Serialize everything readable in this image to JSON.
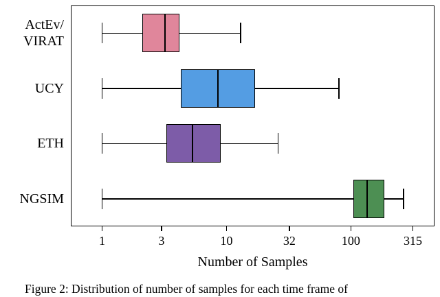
{
  "caption": "Figure 2: Distribution of number of samples for each time frame of",
  "chart_data": {
    "type": "boxplot",
    "orientation": "horizontal",
    "title": "",
    "xlabel": "Number of Samples",
    "x_scale": "log",
    "x_ticks": [
      1,
      3,
      10,
      32,
      100,
      315
    ],
    "x_tick_labels": [
      "1",
      "3",
      "10",
      "32",
      "100",
      "315"
    ],
    "xlim": [
      0.56,
      470
    ],
    "grid": false,
    "legend": "none",
    "categories": [
      "ActEv/VIRAT",
      "UCY",
      "ETH",
      "NGSIM"
    ],
    "category_label_lines": [
      [
        "ActEv/",
        "VIRAT"
      ],
      [
        "UCY"
      ],
      [
        "ETH"
      ],
      [
        "NGSIM"
      ]
    ],
    "series": [
      {
        "name": "ActEv/VIRAT",
        "min": 1,
        "q1": 2.1,
        "median": 3.2,
        "q3": 4.2,
        "max": 13,
        "color": "#e0869b"
      },
      {
        "name": "UCY",
        "min": 1,
        "q1": 4.3,
        "median": 8.5,
        "q3": 17,
        "max": 80,
        "color": "#549de3"
      },
      {
        "name": "ETH",
        "min": 1,
        "q1": 3.3,
        "median": 5.3,
        "q3": 9,
        "max": 26,
        "color": "#7d5ca8"
      },
      {
        "name": "NGSIM",
        "min": 1,
        "q1": 105,
        "median": 135,
        "q3": 185,
        "max": 265,
        "color": "#4d8f53"
      }
    ]
  }
}
